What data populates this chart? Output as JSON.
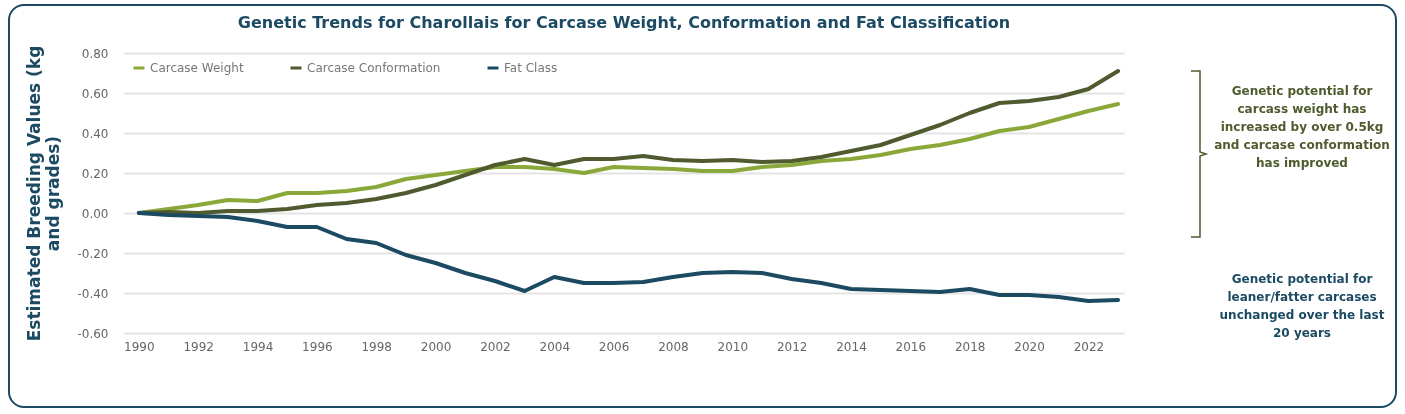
{
  "chart_data": {
    "type": "line",
    "title": "Genetic Trends for Charollais for Carcase Weight, Conformation and Fat Classification",
    "ylabel": "Estimated Breeding Values (kg and grades)",
    "x": [
      1990,
      1991,
      1992,
      1993,
      1994,
      1995,
      1996,
      1997,
      1998,
      1999,
      2000,
      2001,
      2002,
      2003,
      2004,
      2005,
      2006,
      2007,
      2008,
      2009,
      2010,
      2011,
      2012,
      2013,
      2014,
      2015,
      2016,
      2017,
      2018,
      2019,
      2020,
      2021,
      2022,
      2023
    ],
    "series": [
      {
        "name": "Carcase Weight",
        "color": "#8aa83a",
        "values": [
          0,
          0.02,
          0.04,
          0.065,
          0.06,
          0.1,
          0.1,
          0.11,
          0.13,
          0.17,
          0.19,
          0.21,
          0.23,
          0.23,
          0.22,
          0.2,
          0.23,
          0.225,
          0.22,
          0.21,
          0.21,
          0.23,
          0.24,
          0.26,
          0.27,
          0.29,
          0.32,
          0.34,
          0.37,
          0.41,
          0.43,
          0.47,
          0.51,
          0.545
        ]
      },
      {
        "name": "Carcase Conformation",
        "color": "#4f5b2e",
        "values": [
          0,
          0.005,
          0,
          0.01,
          0.01,
          0.02,
          0.04,
          0.05,
          0.07,
          0.1,
          0.14,
          0.19,
          0.24,
          0.27,
          0.24,
          0.27,
          0.27,
          0.285,
          0.265,
          0.26,
          0.265,
          0.255,
          0.26,
          0.28,
          0.31,
          0.34,
          0.39,
          0.44,
          0.5,
          0.55,
          0.56,
          0.58,
          0.62,
          0.71
        ]
      },
      {
        "name": "Fat Class",
        "color": "#1c4a63",
        "values": [
          0,
          -0.01,
          -0.015,
          -0.02,
          -0.04,
          -0.07,
          -0.07,
          -0.13,
          -0.15,
          -0.21,
          -0.25,
          -0.3,
          -0.34,
          -0.39,
          -0.32,
          -0.35,
          -0.35,
          -0.345,
          -0.32,
          -0.3,
          -0.295,
          -0.3,
          -0.33,
          -0.35,
          -0.38,
          -0.385,
          -0.39,
          -0.395,
          -0.38,
          -0.41,
          -0.41,
          -0.42,
          -0.44,
          -0.435
        ]
      }
    ],
    "xlim": [
      1989.5,
      2023.2
    ],
    "xticks": [
      1990,
      1992,
      1994,
      1996,
      1998,
      2000,
      2002,
      2004,
      2006,
      2008,
      2010,
      2012,
      2014,
      2016,
      2018,
      2020,
      2022
    ],
    "ylim": [
      -0.6,
      0.8
    ],
    "yticks": [
      {
        "value": -0.6,
        "label": "-0.60"
      },
      {
        "value": -0.4,
        "label": "-0.40"
      },
      {
        "value": -0.2,
        "label": "-0.20"
      },
      {
        "value": 0,
        "label": "0.00"
      },
      {
        "value": 0.2,
        "label": "0.20"
      },
      {
        "value": 0.4,
        "label": "0.40"
      },
      {
        "value": 0.6,
        "label": "0.60"
      },
      {
        "value": 0.8,
        "label": "0.80"
      }
    ],
    "grid": "y",
    "legend": "top left",
    "marker": "none",
    "line_style": "solid",
    "annotations": [
      "Genetic potential for carcass weight has increased by over 0.5kg and carcase conformation has improved",
      "Genetic potential for leaner/fatter carcases unchanged over the last 20 years"
    ]
  }
}
